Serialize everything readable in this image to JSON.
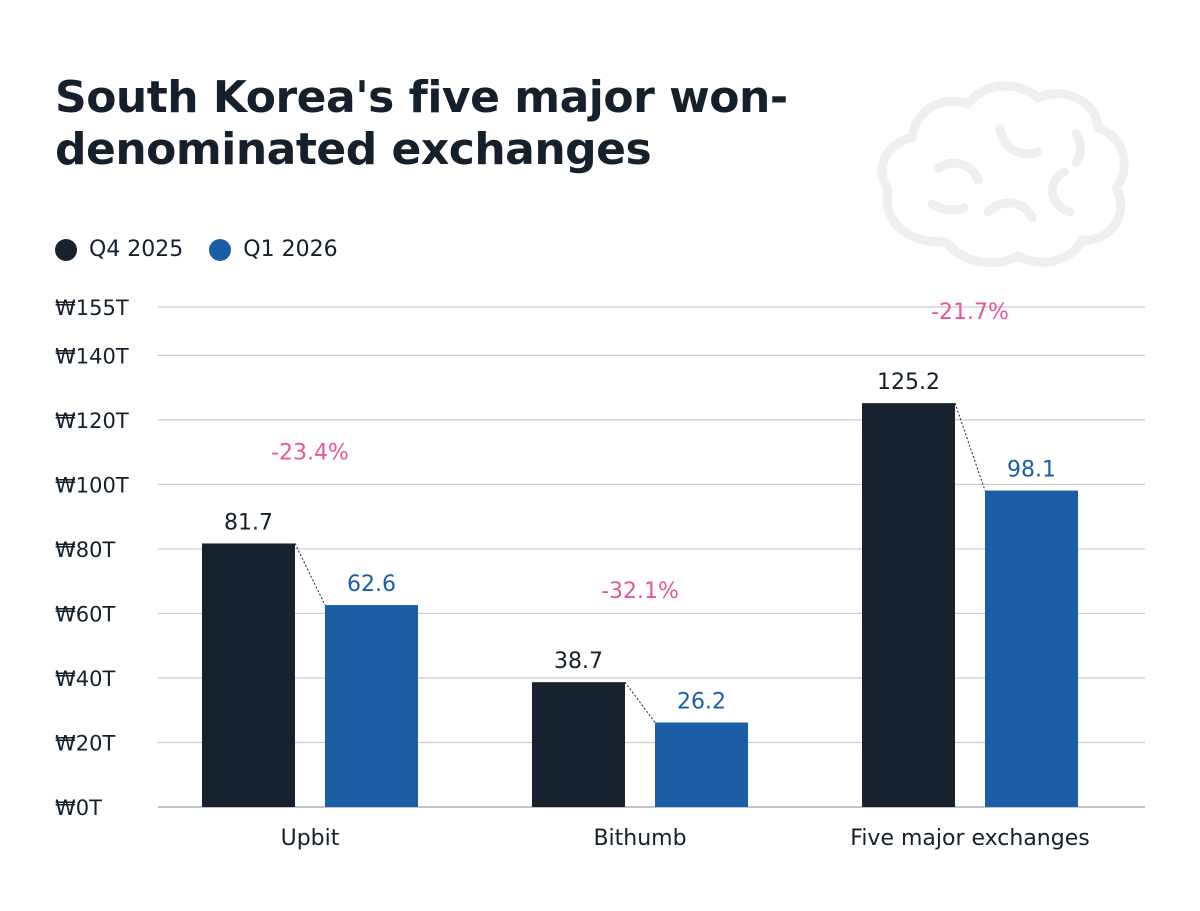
{
  "title": "South Korea's five major won-denominated exchanges",
  "legend": {
    "items": [
      {
        "label": "Q4 2025",
        "color": "#18222e"
      },
      {
        "label": "Q1 2026",
        "color": "#1b5ea6"
      }
    ]
  },
  "logo": {
    "icon": "brain-icon",
    "color": "#efefef"
  },
  "chart_data": {
    "type": "bar",
    "title": "South Korea's five major won-denominated exchanges",
    "categories": [
      "Upbit",
      "Bithumb",
      "Five major exchanges"
    ],
    "series": [
      {
        "name": "Q4 2025",
        "values": [
          81.7,
          38.7,
          125.2
        ],
        "labels": [
          "81.7",
          "38.7",
          "125.2"
        ],
        "color": "#18222e"
      },
      {
        "name": "Q1 2026",
        "values": [
          62.6,
          26.2,
          98.1
        ],
        "labels": [
          "62.6",
          "26.2",
          "98.1"
        ],
        "color": "#1b5ea6"
      }
    ],
    "changes": [
      "-23.4%",
      "-32.1%",
      "-21.7%"
    ],
    "change_color": "#e8559c",
    "y_ticks": [
      0,
      20,
      40,
      60,
      80,
      100,
      120,
      140,
      155
    ],
    "y_tick_labels": [
      "₩0T",
      "₩20T",
      "₩40T",
      "₩60T",
      "₩80T",
      "₩100T",
      "₩120T",
      "₩140T",
      "₩155T"
    ],
    "ylim": [
      0,
      160
    ],
    "grid": true,
    "legend_position": "top-left"
  }
}
